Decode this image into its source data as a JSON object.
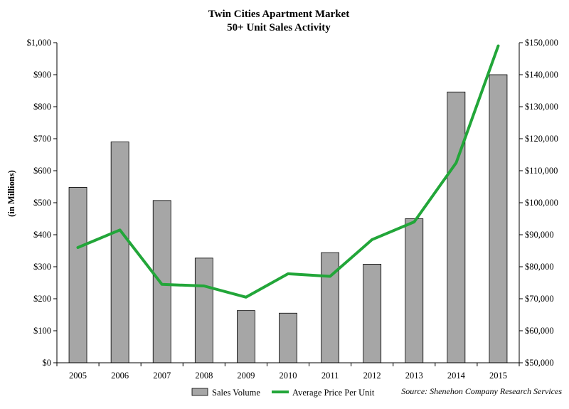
{
  "chart_data": {
    "type": "bar",
    "title": "Twin Cities Apartment Market",
    "subtitle": "50+ Unit Sales Activity",
    "categories": [
      "2005",
      "2006",
      "2007",
      "2008",
      "2009",
      "2010",
      "2011",
      "2012",
      "2013",
      "2014",
      "2015"
    ],
    "series": [
      {
        "name": "Sales Volume",
        "type": "bar",
        "axis": "left",
        "color": "#a6a6a6",
        "values": [
          548,
          690,
          507,
          327,
          163,
          155,
          344,
          308,
          450,
          846,
          900
        ]
      },
      {
        "name": "Average Price Per Unit",
        "type": "line",
        "axis": "right",
        "color": "#22a639",
        "values": [
          86000,
          91500,
          74500,
          74000,
          70500,
          77800,
          77000,
          88500,
          94000,
          112500,
          149000
        ]
      }
    ],
    "ylabel": "(in Millions)",
    "ylim": [
      0,
      1000
    ],
    "yticks": [
      "$0",
      "$100",
      "$200",
      "$300",
      "$400",
      "$500",
      "$600",
      "$700",
      "$800",
      "$900",
      "$1,000"
    ],
    "y2lim": [
      50000,
      150000
    ],
    "y2ticks": [
      "$50,000",
      "$60,000",
      "$70,000",
      "$80,000",
      "$90,000",
      "$100,000",
      "$110,000",
      "$120,000",
      "$130,000",
      "$140,000",
      "$150,000"
    ],
    "grid": false,
    "legend_position": "bottom",
    "source": "Source: Shenehon Company Research Services"
  }
}
